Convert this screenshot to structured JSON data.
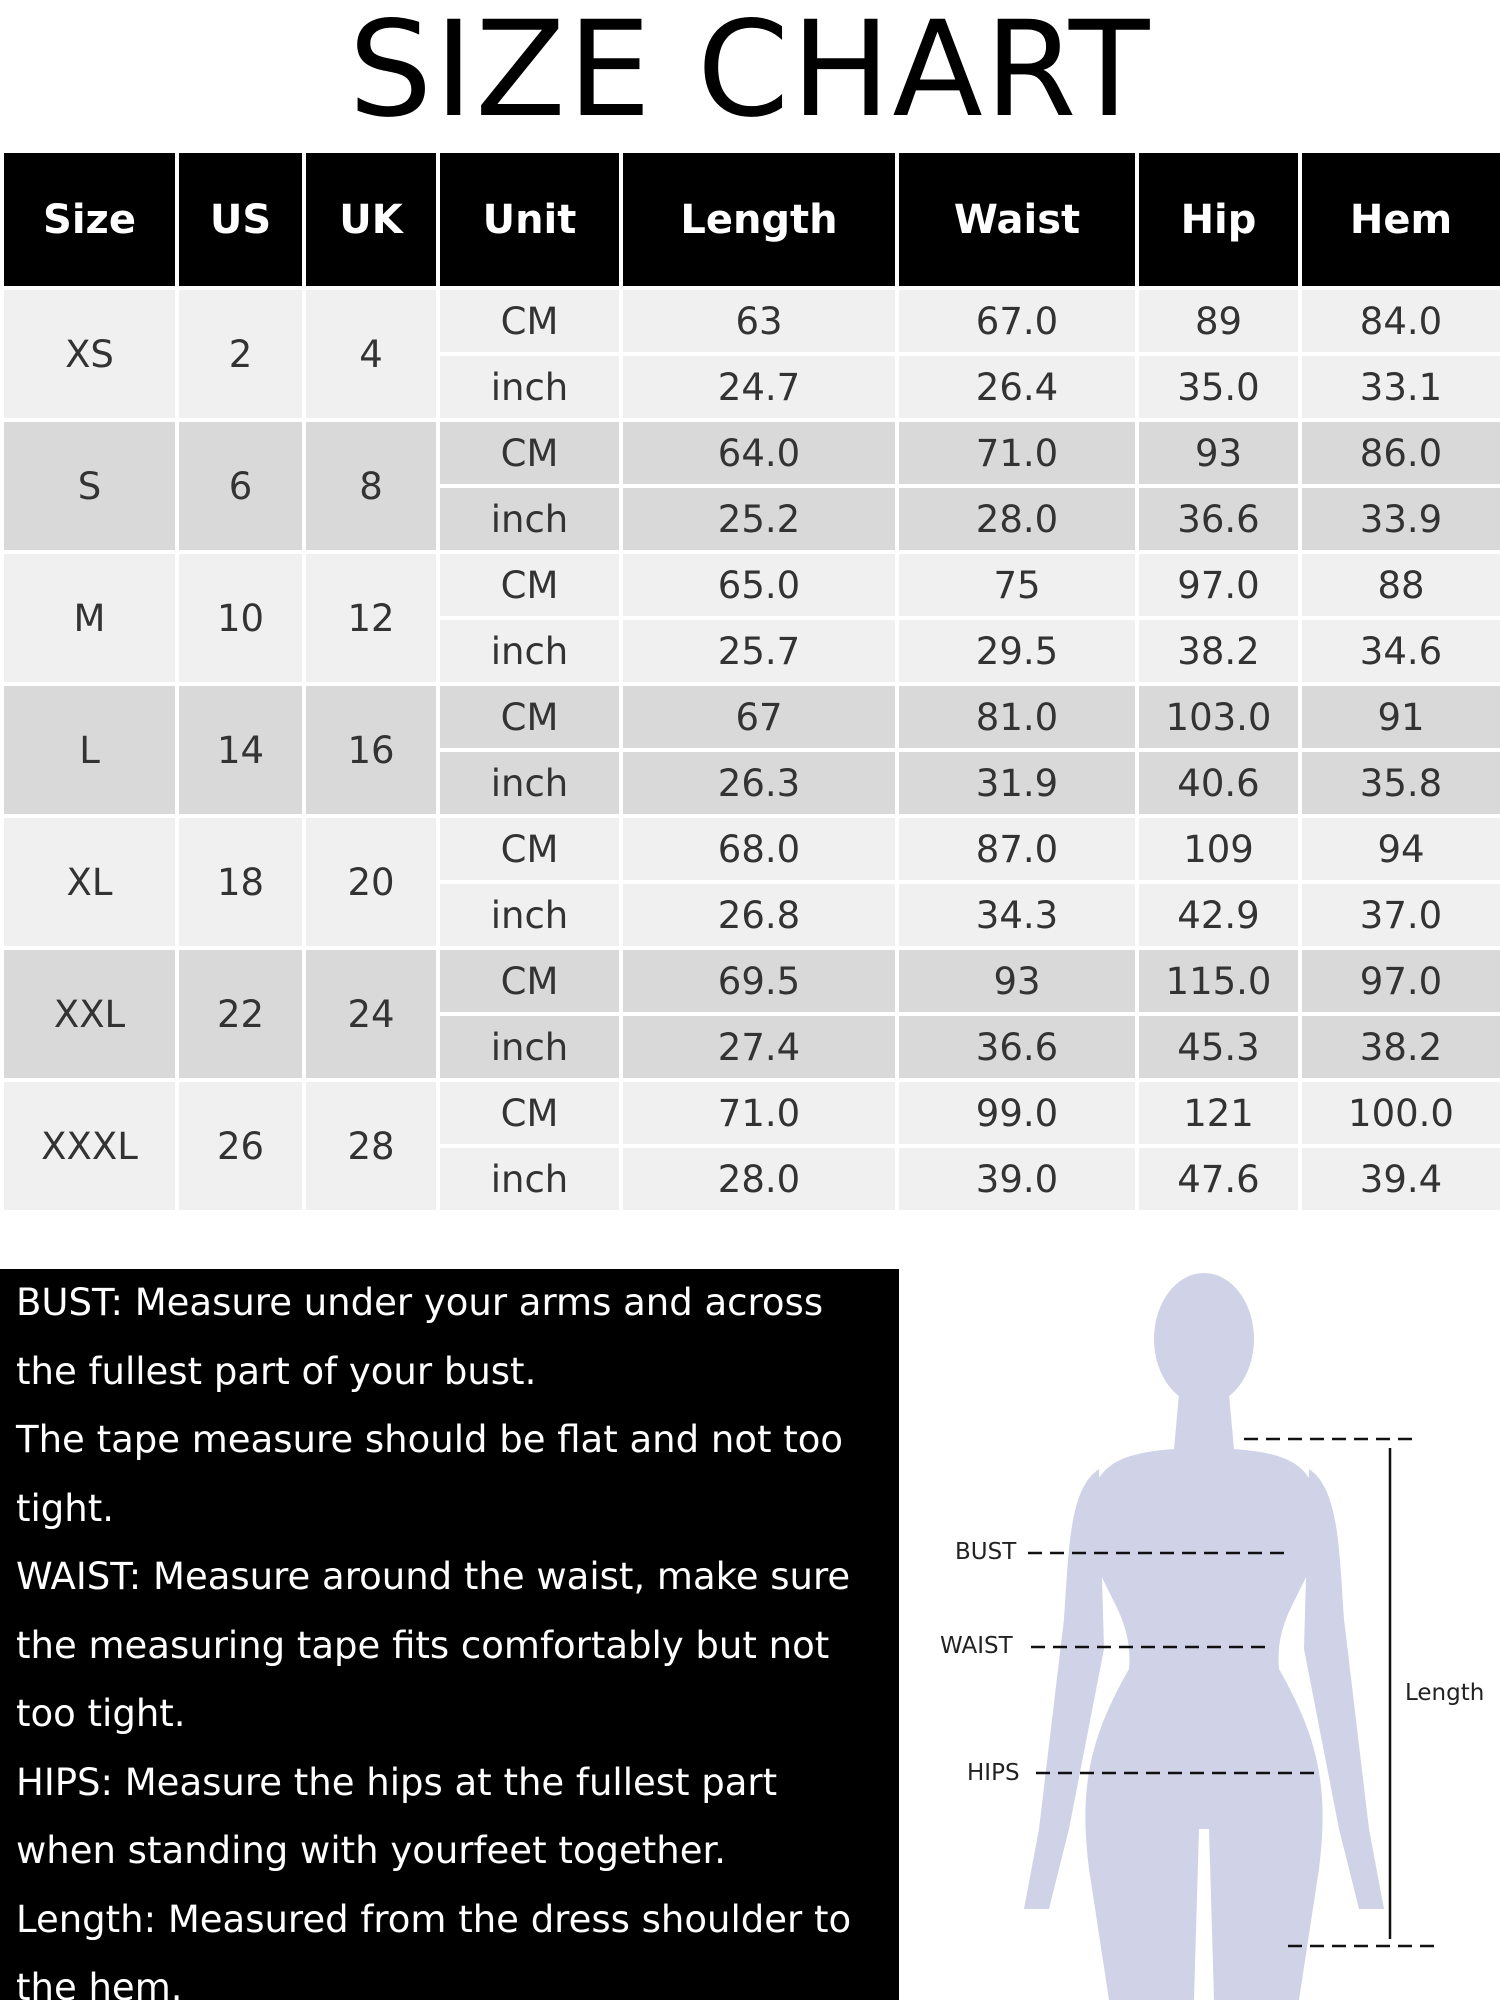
{
  "title": "SIZE CHART",
  "table": {
    "header": [
      "Size",
      "US",
      "UK",
      "Unit",
      "Length",
      "Waist",
      "Hip",
      "Hem"
    ],
    "rows": [
      {
        "size": "XS",
        "us": "2",
        "uk": "4",
        "units": [
          {
            "unit": "CM",
            "values": [
              "63",
              "67.0",
              "89",
              "84.0"
            ]
          },
          {
            "unit": "inch",
            "values": [
              "24.7",
              "26.4",
              "35.0",
              "33.1"
            ]
          }
        ]
      },
      {
        "size": "S",
        "us": "6",
        "uk": "8",
        "units": [
          {
            "unit": "CM",
            "values": [
              "64.0",
              "71.0",
              "93",
              "86.0"
            ]
          },
          {
            "unit": "inch",
            "values": [
              "25.2",
              "28.0",
              "36.6",
              "33.9"
            ]
          }
        ]
      },
      {
        "size": "M",
        "us": "10",
        "uk": "12",
        "units": [
          {
            "unit": "CM",
            "values": [
              "65.0",
              "75",
              "97.0",
              "88"
            ]
          },
          {
            "unit": "inch",
            "values": [
              "25.7",
              "29.5",
              "38.2",
              "34.6"
            ]
          }
        ]
      },
      {
        "size": "L",
        "us": "14",
        "uk": "16",
        "units": [
          {
            "unit": "CM",
            "values": [
              "67",
              "81.0",
              "103.0",
              "91"
            ]
          },
          {
            "unit": "inch",
            "values": [
              "26.3",
              "31.9",
              "40.6",
              "35.8"
            ]
          }
        ]
      },
      {
        "size": "XL",
        "us": "18",
        "uk": "20",
        "units": [
          {
            "unit": "CM",
            "values": [
              "68.0",
              "87.0",
              "109",
              "94"
            ]
          },
          {
            "unit": "inch",
            "values": [
              "26.8",
              "34.3",
              "42.9",
              "37.0"
            ]
          }
        ]
      },
      {
        "size": "XXL",
        "us": "22",
        "uk": "24",
        "units": [
          {
            "unit": "CM",
            "values": [
              "69.5",
              "93",
              "115.0",
              "97.0"
            ]
          },
          {
            "unit": "inch",
            "values": [
              "27.4",
              "36.6",
              "45.3",
              "38.2"
            ]
          }
        ]
      },
      {
        "size": "XXXL",
        "us": "26",
        "uk": "28",
        "units": [
          {
            "unit": "CM",
            "values": [
              "71.0",
              "99.0",
              "121",
              "100.0"
            ]
          },
          {
            "unit": "inch",
            "values": [
              "28.0",
              "39.0",
              "47.6",
              "39.4"
            ]
          }
        ]
      }
    ]
  },
  "notes": [
    "BUST: Measure under your arms and across the fullest part of your bust.",
    "The tape measure should be flat and not too tight.",
    "WAIST: Measure around the waist, make sure the measuring tape fits comfortably but not too tight.",
    "HIPS: Measure the hips at the fullest part when standing with yourfeet together.",
    "Length: Measured from the dress shoulder to the hem."
  ],
  "figure": {
    "bust": "BUST",
    "waist": "WAIST",
    "hips": "HIPS",
    "length": "Length"
  }
}
